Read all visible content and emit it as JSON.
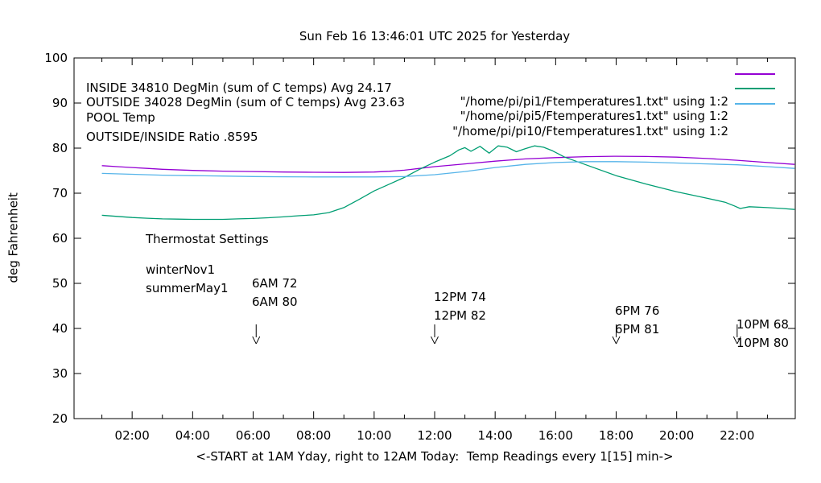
{
  "title": "Sun Feb 16 13:46:01 UTC 2025 for Yesterday",
  "y_axis_label": "deg Fahrenheit",
  "x_axis_label": "<-START at 1AM Yday, right to 12AM Today:  Temp Readings every 1[15] min->",
  "ratio_text": "OUTSIDE/INSIDE Ratio .8595",
  "legend": {
    "entries": [
      {
        "label": "INSIDE 34810 DegMin (sum of C temps) Avg 24.17",
        "file": "\"/home/pi/pi1/Ftemperatures1.txt\" using 1:2",
        "color": "#9400d3"
      },
      {
        "label": "OUTSIDE 34028 DegMin (sum of C temps) Avg 23.63",
        "file": "\"/home/pi/pi5/Ftemperatures1.txt\" using 1:2",
        "color": "#009e73"
      },
      {
        "label": "POOL Temp",
        "file": "\"/home/pi/pi10/Ftemperatures1.txt\" using 1:2",
        "color": "#56b4e9"
      }
    ]
  },
  "thermostat": {
    "title": "Thermostat Settings",
    "rows": [
      {
        "name": "winterNov1",
        "c6am": "6AM 72",
        "c12pm": "12PM 74",
        "c6pm": "6PM 76",
        "c10pm": "10PM 68"
      },
      {
        "name": "summerMay1",
        "c6am": "6AM 80",
        "c12pm": "12PM 82",
        "c6pm": "6PM 81",
        "c10pm": "10PM 80"
      }
    ]
  },
  "chart_data": {
    "type": "line",
    "title": "Sun Feb 16 13:46:01 UTC 2025 for Yesterday",
    "xlabel": "<-START at 1AM Yday, right to 12AM Today:  Temp Readings every 1[15] min->",
    "ylabel": "deg Fahrenheit",
    "x_range": [
      0.08,
      23.92
    ],
    "y_range": [
      20,
      100
    ],
    "grid": false,
    "legend_position": "top-left-inside",
    "axis_color": "#000000",
    "y_ticks": [
      20,
      30,
      40,
      50,
      60,
      70,
      80,
      90,
      100
    ],
    "x_major_ticks": [
      {
        "t": 2,
        "label": "02:00"
      },
      {
        "t": 4,
        "label": "04:00"
      },
      {
        "t": 6,
        "label": "06:00"
      },
      {
        "t": 8,
        "label": "08:00"
      },
      {
        "t": 10,
        "label": "10:00"
      },
      {
        "t": 12,
        "label": "12:00"
      },
      {
        "t": 14,
        "label": "14:00"
      },
      {
        "t": 16,
        "label": "16:00"
      },
      {
        "t": 18,
        "label": "18:00"
      },
      {
        "t": 20,
        "label": "20:00"
      },
      {
        "t": 22,
        "label": "22:00"
      }
    ],
    "x_minor_ticks": [
      1,
      3,
      5,
      7,
      9,
      11,
      13,
      15,
      17,
      19,
      21,
      23
    ],
    "arrows": [
      {
        "t": 6.1,
        "y_from": 40.9,
        "y_to": 36.6
      },
      {
        "t": 12.0,
        "y_from": 40.9,
        "y_to": 36.6
      },
      {
        "t": 18.0,
        "y_from": 40.9,
        "y_to": 36.6
      },
      {
        "t": 22.0,
        "y_from": 40.9,
        "y_to": 36.6
      }
    ],
    "series": [
      {
        "name": "INSIDE",
        "color": "#9400d3",
        "points": [
          [
            1,
            76.1
          ],
          [
            1.5,
            75.9
          ],
          [
            2,
            75.7
          ],
          [
            2.5,
            75.5
          ],
          [
            3,
            75.3
          ],
          [
            4,
            75.05
          ],
          [
            5,
            74.9
          ],
          [
            6,
            74.8
          ],
          [
            7,
            74.7
          ],
          [
            8,
            74.65
          ],
          [
            9,
            74.6
          ],
          [
            10,
            74.7
          ],
          [
            10.5,
            74.85
          ],
          [
            11,
            75.1
          ],
          [
            11.5,
            75.5
          ],
          [
            12,
            75.9
          ],
          [
            13,
            76.5
          ],
          [
            14,
            77.1
          ],
          [
            15,
            77.6
          ],
          [
            16,
            77.9
          ],
          [
            17,
            78.1
          ],
          [
            18,
            78.2
          ],
          [
            19,
            78.15
          ],
          [
            20,
            78.0
          ],
          [
            21,
            77.7
          ],
          [
            22,
            77.3
          ],
          [
            23,
            76.8
          ],
          [
            23.9,
            76.4
          ]
        ]
      },
      {
        "name": "OUTSIDE",
        "color": "#009e73",
        "points": [
          [
            1,
            65.1
          ],
          [
            1.5,
            64.85
          ],
          [
            2,
            64.6
          ],
          [
            2.5,
            64.45
          ],
          [
            3,
            64.3
          ],
          [
            3.5,
            64.25
          ],
          [
            4,
            64.2
          ],
          [
            4.5,
            64.2
          ],
          [
            5,
            64.2
          ],
          [
            5.5,
            64.3
          ],
          [
            6,
            64.4
          ],
          [
            6.5,
            64.55
          ],
          [
            7,
            64.75
          ],
          [
            7.5,
            65.0
          ],
          [
            8,
            65.2
          ],
          [
            8.5,
            65.7
          ],
          [
            9,
            66.8
          ],
          [
            9.5,
            68.6
          ],
          [
            10,
            70.5
          ],
          [
            10.5,
            72.0
          ],
          [
            11,
            73.5
          ],
          [
            11.5,
            75.3
          ],
          [
            12,
            76.9
          ],
          [
            12.5,
            78.3
          ],
          [
            12.8,
            79.6
          ],
          [
            13.0,
            80.1
          ],
          [
            13.2,
            79.3
          ],
          [
            13.5,
            80.4
          ],
          [
            13.8,
            78.9
          ],
          [
            14.1,
            80.5
          ],
          [
            14.4,
            80.2
          ],
          [
            14.7,
            79.2
          ],
          [
            15.0,
            79.9
          ],
          [
            15.3,
            80.5
          ],
          [
            15.6,
            80.2
          ],
          [
            15.9,
            79.4
          ],
          [
            16.3,
            78.0
          ],
          [
            17,
            76.3
          ],
          [
            18,
            73.9
          ],
          [
            19,
            72.0
          ],
          [
            20,
            70.3
          ],
          [
            21,
            68.9
          ],
          [
            21.6,
            68.0
          ],
          [
            21.9,
            67.2
          ],
          [
            22.1,
            66.6
          ],
          [
            22.4,
            67.0
          ],
          [
            23,
            66.8
          ],
          [
            23.5,
            66.6
          ],
          [
            23.9,
            66.4
          ]
        ]
      },
      {
        "name": "POOL",
        "color": "#56b4e9",
        "points": [
          [
            1,
            74.4
          ],
          [
            2,
            74.2
          ],
          [
            3,
            74.0
          ],
          [
            4,
            73.9
          ],
          [
            5,
            73.8
          ],
          [
            6,
            73.7
          ],
          [
            7,
            73.65
          ],
          [
            8,
            73.6
          ],
          [
            9,
            73.6
          ],
          [
            10,
            73.6
          ],
          [
            11,
            73.7
          ],
          [
            12,
            74.1
          ],
          [
            13,
            74.8
          ],
          [
            14,
            75.7
          ],
          [
            15,
            76.4
          ],
          [
            16,
            76.8
          ],
          [
            17,
            77.0
          ],
          [
            18,
            77.0
          ],
          [
            19,
            76.9
          ],
          [
            20,
            76.7
          ],
          [
            21,
            76.5
          ],
          [
            22,
            76.3
          ],
          [
            23,
            75.9
          ],
          [
            23.9,
            75.5
          ]
        ]
      }
    ]
  }
}
